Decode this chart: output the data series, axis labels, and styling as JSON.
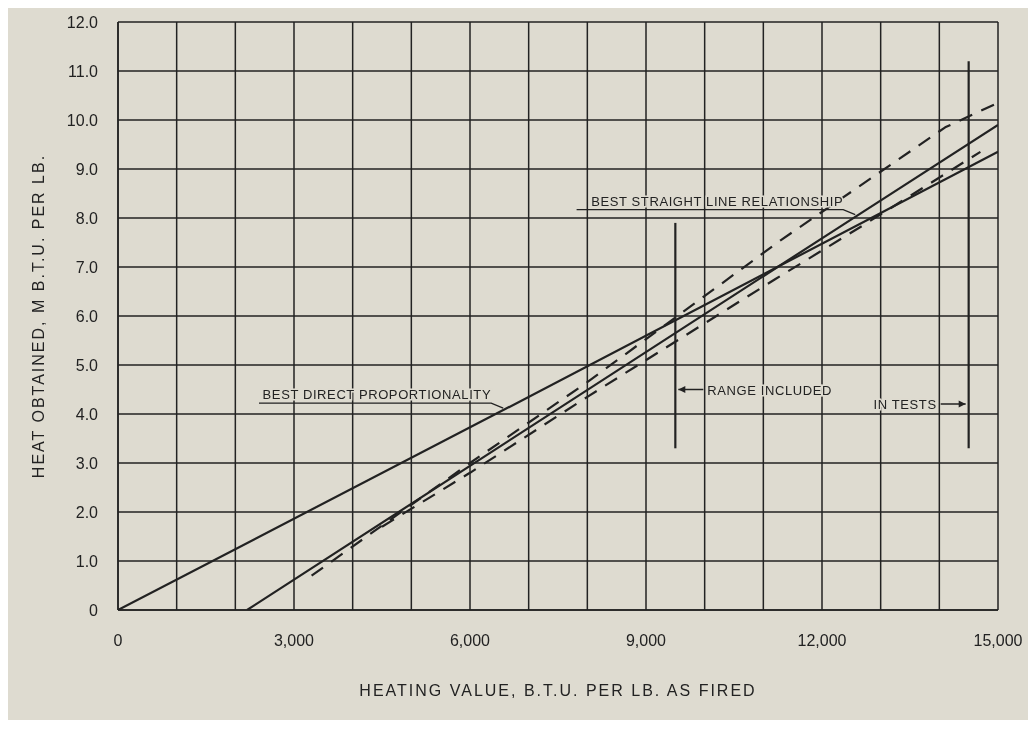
{
  "chart_data": {
    "type": "line",
    "xlabel": "HEATING VALUE, B.T.U. PER LB. AS FIRED",
    "ylabel": "HEAT OBTAINED, M B.T.U. PER LB.",
    "xlim": [
      0,
      15000
    ],
    "ylim": [
      0,
      12
    ],
    "xticks": [
      0,
      {
        "value": 1000,
        "label": null
      },
      {
        "value": 2000,
        "label": null
      },
      {
        "value": 3000,
        "label": "3,000"
      },
      {
        "value": 4000,
        "label": null
      },
      {
        "value": 5000,
        "label": null
      },
      {
        "value": 6000,
        "label": "6,000"
      },
      {
        "value": 7000,
        "label": null
      },
      {
        "value": 8000,
        "label": null
      },
      {
        "value": 9000,
        "label": "9,000"
      },
      {
        "value": 10000,
        "label": null
      },
      {
        "value": 11000,
        "label": null
      },
      {
        "value": 12000,
        "label": "12,000"
      },
      {
        "value": 13000,
        "label": null
      },
      {
        "value": 14000,
        "label": null
      },
      {
        "value": 15000,
        "label": "15,000"
      }
    ],
    "yticks": [
      0,
      {
        "value": 1,
        "label": "1.0"
      },
      {
        "value": 2,
        "label": "2.0"
      },
      {
        "value": 3,
        "label": "3.0"
      },
      {
        "value": 4,
        "label": "4.0"
      },
      {
        "value": 5,
        "label": "5.0"
      },
      {
        "value": 6,
        "label": "6.0"
      },
      {
        "value": 7,
        "label": "7.0"
      },
      {
        "value": 8,
        "label": "8.0"
      },
      {
        "value": 9,
        "label": "9.0"
      },
      {
        "value": 10,
        "label": "10.0"
      },
      {
        "value": 11,
        "label": "11.0"
      },
      {
        "value": 12,
        "label": "12.0"
      }
    ],
    "grid": true,
    "legend": false,
    "marker": "none",
    "line_style": "solid",
    "series": [
      {
        "name": "BEST DIRECT PROPORTIONALITY",
        "color": "#222222",
        "x": [
          0,
          6600,
          15000
        ],
        "values": [
          0,
          4.1,
          9.35
        ]
      },
      {
        "name": "BEST STRAIGHT LINE RELATIONSHIP",
        "color": "#222222",
        "x": [
          2200,
          12600,
          15000
        ],
        "values": [
          0,
          8.05,
          9.9
        ]
      },
      {
        "color": "#222222",
        "line_style": "dashed",
        "x": [
          3300,
          6000,
          8000,
          11300,
          14100,
          15000
        ],
        "values": [
          0.7,
          3.0,
          4.65,
          7.55,
          9.85,
          10.35
        ]
      },
      {
        "color": "#222222",
        "line_style": "dashed",
        "x": [
          4500,
          6000,
          8000,
          11200,
          12700,
          14700
        ],
        "values": [
          1.7,
          2.8,
          4.35,
          6.75,
          7.85,
          9.35
        ]
      },
      {
        "color": "#222222",
        "x": [
          9500,
          9500
        ],
        "values": [
          3.3,
          7.9
        ]
      },
      {
        "color": "#222222",
        "x": [
          14500,
          14500
        ],
        "values": [
          3.3,
          11.2
        ]
      }
    ],
    "annotations": [
      {
        "text": "RANGE INCLUDED",
        "x": 9500,
        "y": 4.5
      },
      {
        "text": "IN TESTS",
        "x": 14500,
        "y": 4.0
      }
    ]
  }
}
